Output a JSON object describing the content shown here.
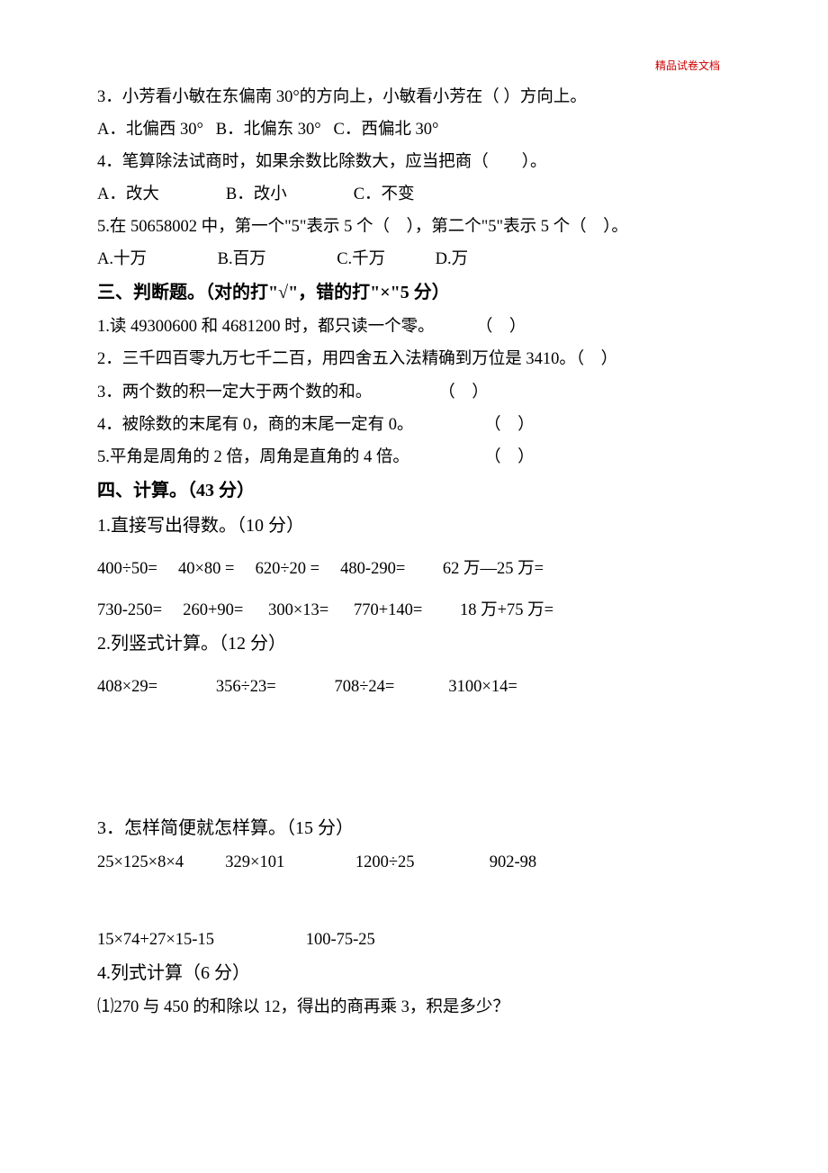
{
  "header": {
    "label": "精品试卷文档"
  },
  "q3": {
    "text": "3．小芳看小敏在东偏南 30°的方向上，小敏看小芳在（ ）方向上。",
    "options": "A．北偏西 30°   B．北偏东 30°   C．西偏北 30°"
  },
  "q4": {
    "text": "4．笔算除法试商时，如果余数比除数大，应当把商（　　）。",
    "options": "A．改大　　　　B．改小　　　　C．不变"
  },
  "q5": {
    "text": "5.在 50658002 中，第一个\"5\"表示 5 个（    ），第二个\"5\"表示 5 个（    ）。",
    "options": "A.十万　　　　 B.百万　　　　 C.千万            D.万"
  },
  "section3": {
    "heading": "三、判断题。（对的打\"√\"，错的打\"×\"5 分）",
    "items": [
      "1.读 49300600 和 4681200 时，都只读一个零。          （    ）",
      "2．三千四百零九万七千二百，用四舍五入法精确到万位是 3410。（    ）",
      "3．两个数的积一定大于两个数的和。                （    ）",
      "4．被除数的末尾有 0，商的末尾一定有 0。                 （    ）",
      "5.平角是周角的 2 倍，周角是直角的 4 倍。                  （    ）"
    ]
  },
  "section4": {
    "heading": "四、计算。（43 分）",
    "part1": {
      "title": "1.直接写出得数。（10 分）",
      "row1": "400÷50=  40×80 =  620÷20 =  480-290=   62 万—25 万=",
      "row2": "730-250=  260+90=   300×13=   770+140=   18 万+75 万="
    },
    "part2": {
      "title": "2.列竖式计算。（12 分）",
      "row1": "408×29=     356÷23=     708÷24=    3100×14="
    },
    "part3": {
      "title": "3．怎样简便就怎样算。（15 分）",
      "row1": "25×125×8×4    329×101     1200÷25      902-98",
      "row2": "15×74+27×15-15       100-75-25"
    },
    "part4": {
      "title": "4.列式计算（6 分）",
      "item1": "⑴270 与 450 的和除以 12，得出的商再乘 3，积是多少？"
    }
  }
}
